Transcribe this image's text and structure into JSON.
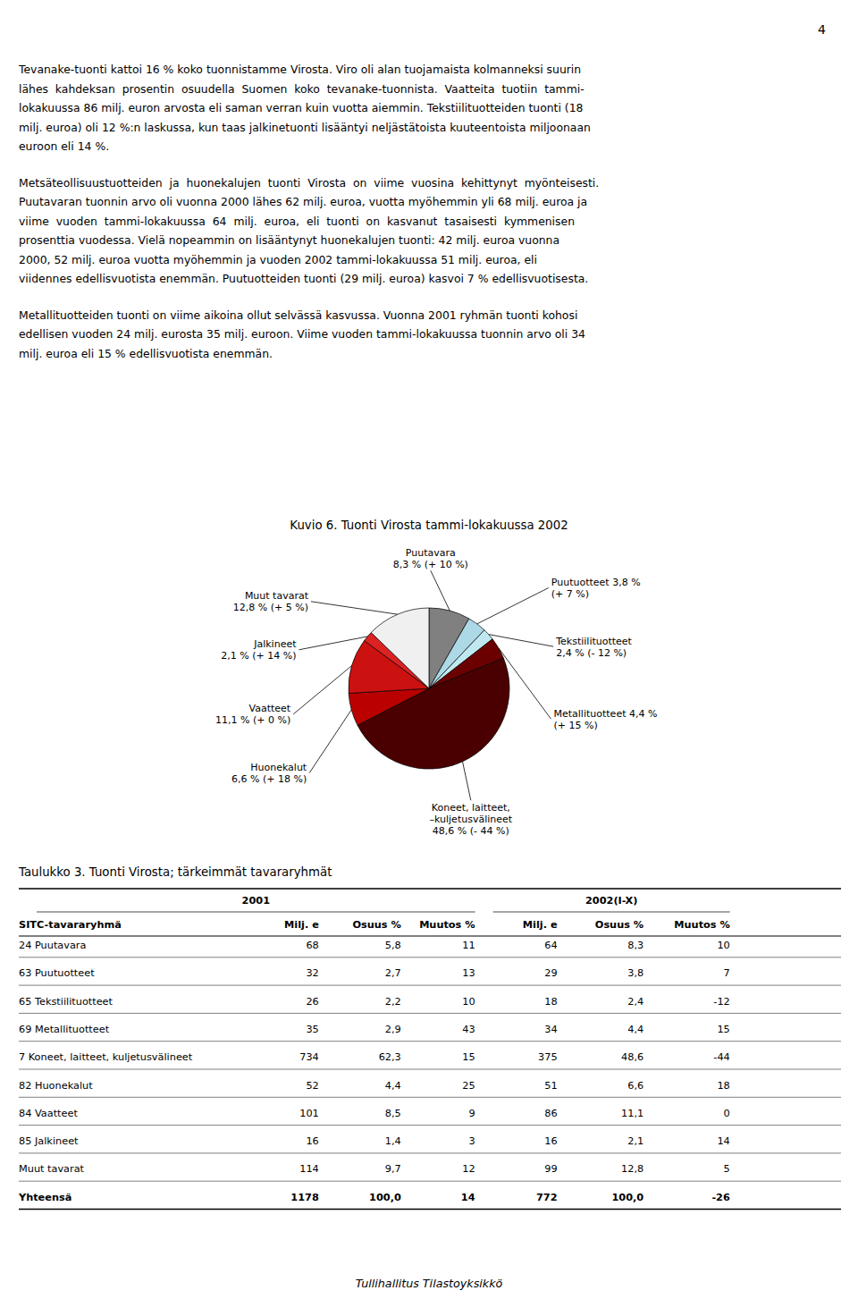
{
  "page_number": "4",
  "paragraphs": [
    [
      "Tevanake-tuonti kattoi 16 % koko tuonnistamme Virosta. Viro oli alan tuojamaista kolmanneksi suurin",
      "lähes  kahdeksan  prosentin  osuudella  Suomen  koko  tevanake-tuonnista.  Vaatteita  tuotiin  tammi-",
      "lokakuussa 86 milj. euron arvosta eli saman verran kuin vuotta aiemmin. Tekstiilituotteiden tuonti (18",
      "milj. euroa) oli 12 %:n laskussa, kun taas jalkinetuonti lisääntyi neljästätoista kuuteentoista miljoonaan",
      "euroon eli 14 %."
    ],
    [
      "Metsäteollisuustuotteiden  ja  huonekalujen  tuonti  Virosta  on  viime  vuosina  kehittynyt  myönteisesti.",
      "Puutavaran tuonnin arvo oli vuonna 2000 lähes 62 milj. euroa, vuotta myöhemmin yli 68 milj. euroa ja",
      "viime  vuoden  tammi-lokakuussa  64  milj.  euroa,  eli  tuonti  on  kasvanut  tasaisesti  kymmenisen",
      "prosenttia vuodessa. Vielä nopeammin on lisääntynyt huonekalujen tuonti: 42 milj. euroa vuonna",
      "2000, 52 milj. euroa vuotta myöhemmin ja vuoden 2002 tammi-lokakuussa 51 milj. euroa, eli",
      "viidennes edellisvuotista enemmän. Puutuotteiden tuonti (29 milj. euroa) kasvoi 7 % edellisvuotisesta."
    ],
    [
      "Metallituotteiden tuonti on viime aikoina ollut selvässä kasvussa. Vuonna 2001 ryhmän tuonti kohosi",
      "edellisen vuoden 24 milj. eurosta 35 milj. euroon. Viime vuoden tammi-lokakuussa tuonnin arvo oli 34",
      "milj. euroa eli 15 % edellisvuotista enemmän."
    ]
  ],
  "chart_data": {
    "type": "pie",
    "title": "Kuvio 6. Tuonti Virosta tammi-lokakuussa 2002",
    "values": [
      8.3,
      3.8,
      2.4,
      4.4,
      48.6,
      6.6,
      11.1,
      2.1,
      12.8
    ],
    "colors": [
      "#808080",
      "#add8e6",
      "#c0e8f0",
      "#6b0000",
      "#4a0000",
      "#bb0000",
      "#cc1111",
      "#dd2222",
      "#f0f0f0"
    ],
    "labels": [
      [
        "Puutavara",
        "8,3 % (+ 10 %)"
      ],
      [
        "Puutuotteet 3,8 %",
        "(+ 7 %)"
      ],
      [
        "Tekstiilituotteet",
        "2,4 % (- 12 %)"
      ],
      [
        "Metallituotteet 4,4 %",
        "(+ 15 %)"
      ],
      [
        "Koneet, laitteet,",
        "–kuljetusvälineet",
        "48,6 % (- 44 %)"
      ],
      [
        "Huonekalut",
        "6,6 % (+ 18 %)"
      ],
      [
        "Vaatteet",
        "11,1 % (+ 0 %)"
      ],
      [
        "Jalkineet",
        "2,1 % (+ 14 %)"
      ],
      [
        "Muut tavarat",
        "12,8 % (+ 5 %)"
      ]
    ]
  },
  "table": {
    "title": "Taulukko 3. Tuonti Virosta; tärkeimmät tavararyhmät",
    "group_headers": [
      "2001",
      "2002(I-X)"
    ],
    "headers": [
      "SITC-tavararyhmä",
      "Milj. e",
      "Osuus %",
      "Muutos %",
      "Milj. e",
      "Osuus %",
      "Muutos %"
    ],
    "rows": [
      [
        "24 Puutavara",
        "68",
        "5,8",
        "11",
        "64",
        "8,3",
        "10"
      ],
      [
        "63 Puutuotteet",
        "32",
        "2,7",
        "13",
        "29",
        "3,8",
        "7"
      ],
      [
        "65 Tekstiilituotteet",
        "26",
        "2,2",
        "10",
        "18",
        "2,4",
        "-12"
      ],
      [
        "69 Metallituotteet",
        "35",
        "2,9",
        "43",
        "34",
        "4,4",
        "15"
      ],
      [
        "7 Koneet, laitteet, kuljetusvälineet",
        "734",
        "62,3",
        "15",
        "375",
        "48,6",
        "-44"
      ],
      [
        "82 Huonekalut",
        "52",
        "4,4",
        "25",
        "51",
        "6,6",
        "18"
      ],
      [
        "84 Vaatteet",
        "101",
        "8,5",
        "9",
        "86",
        "11,1",
        "0"
      ],
      [
        "85 Jalkineet",
        "16",
        "1,4",
        "3",
        "16",
        "2,1",
        "14"
      ],
      [
        "Muut tavarat",
        "114",
        "9,7",
        "12",
        "99",
        "12,8",
        "5"
      ],
      [
        "Yhteensä",
        "1178",
        "100,0",
        "14",
        "772",
        "100,0",
        "-26"
      ]
    ]
  },
  "footer": "Tullihallitus Tilastoyksikkö"
}
